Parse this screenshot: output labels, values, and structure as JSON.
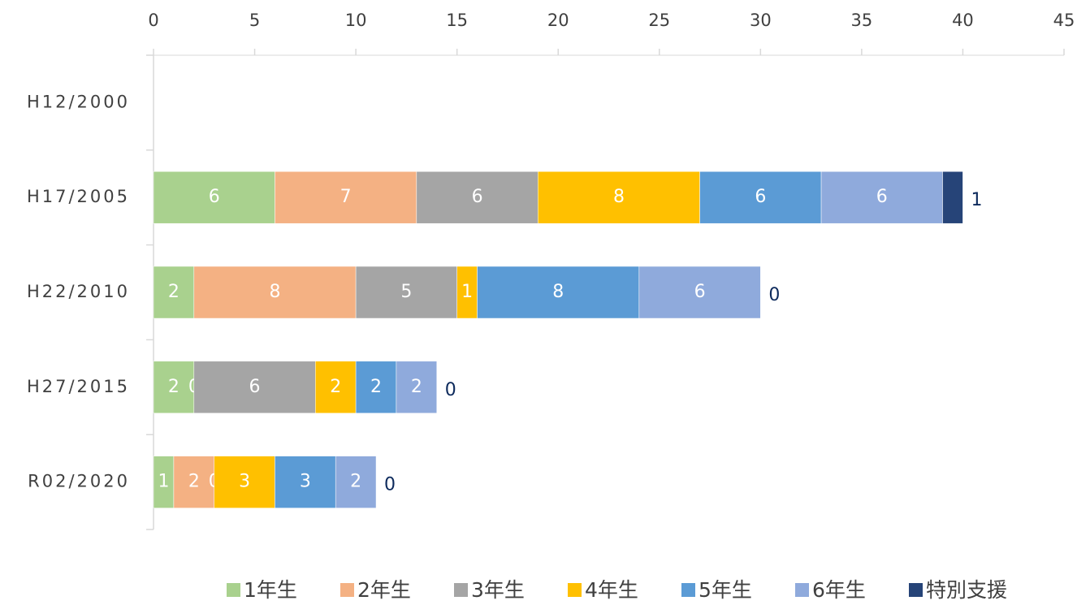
{
  "chart_data": {
    "type": "bar",
    "orientation": "horizontal",
    "stacked": true,
    "categories": [
      "H12/2000",
      "H17/2005",
      "H22/2010",
      "H27/2015",
      "R02/2020"
    ],
    "series": [
      {
        "name": "1年生",
        "color": "#a9d18e",
        "values": [
          null,
          6,
          2,
          2,
          1
        ]
      },
      {
        "name": "2年生",
        "color": "#f4b183",
        "values": [
          null,
          7,
          8,
          0,
          2
        ]
      },
      {
        "name": "3年生",
        "color": "#a5a5a5",
        "values": [
          null,
          6,
          5,
          6,
          0
        ]
      },
      {
        "name": "4年生",
        "color": "#ffc000",
        "values": [
          null,
          8,
          1,
          2,
          3
        ]
      },
      {
        "name": "5年生",
        "color": "#5b9bd5",
        "values": [
          null,
          6,
          8,
          2,
          3
        ]
      },
      {
        "name": "6年生",
        "color": "#8faadc",
        "values": [
          null,
          6,
          6,
          2,
          2
        ]
      },
      {
        "name": "特別支援",
        "color": "#264478",
        "values": [
          null,
          1,
          0,
          0,
          0
        ]
      }
    ],
    "xlim": [
      0,
      45
    ],
    "xticks": [
      0,
      5,
      10,
      15,
      20,
      25,
      30,
      35,
      40,
      45
    ],
    "legend": "bottom"
  }
}
